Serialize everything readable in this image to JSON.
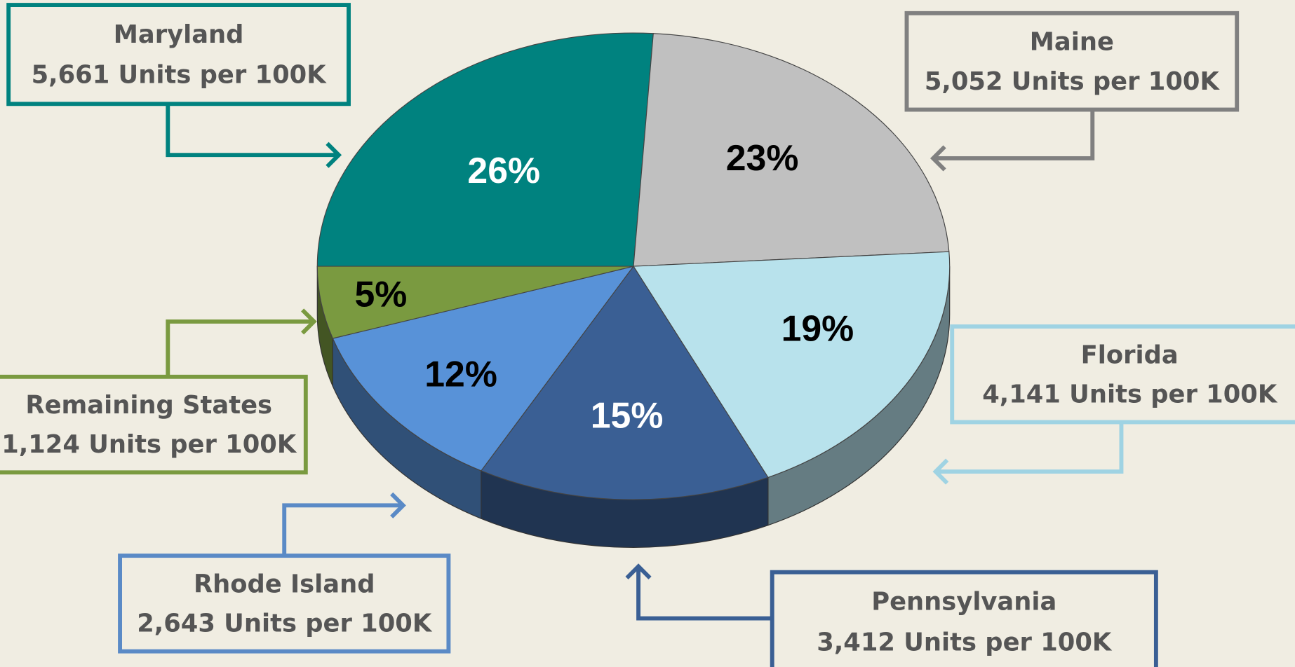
{
  "chart_data": {
    "type": "pie",
    "categories": [
      "Maryland",
      "Maine",
      "Florida",
      "Pennsylvania",
      "Rhode Island",
      "Remaining States"
    ],
    "values": [
      26,
      23,
      19,
      15,
      12,
      5
    ],
    "value_labels": [
      "26%",
      "23%",
      "19%",
      "15%",
      "12%",
      "5%"
    ],
    "unit_labels": [
      "5,661 Units per 100K",
      "5,052 Units per 100K",
      "4,141 Units per 100K",
      "3,412 Units per 100K",
      "2,643 Units per 100K",
      "1,124 Units per 100K"
    ],
    "colors": [
      "#00827f",
      "#c0c0c0",
      "#b8e2ec",
      "#3a5f94",
      "#5892d8",
      "#7a9a40"
    ],
    "callout_colors": [
      "#00827f",
      "#808080",
      "#9fd3e3",
      "#3a5f94",
      "#5a8ac6",
      "#7a9a40"
    ]
  }
}
